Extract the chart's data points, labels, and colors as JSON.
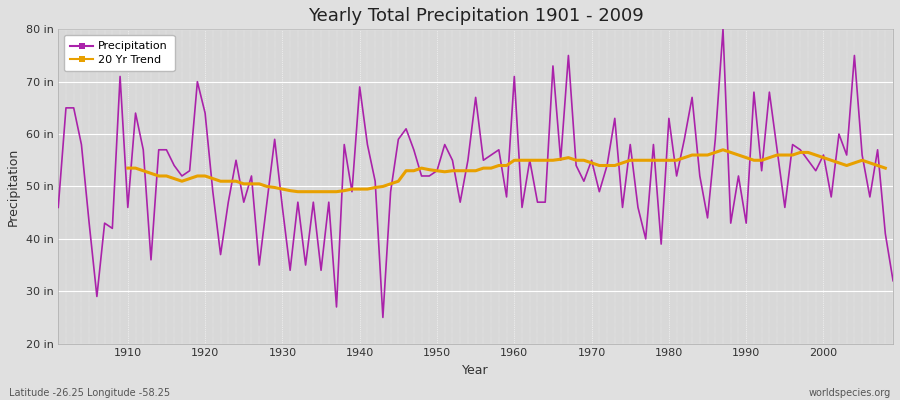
{
  "title": "Yearly Total Precipitation 1901 - 2009",
  "xlabel": "Year",
  "ylabel": "Precipitation",
  "footnote_left": "Latitude -26.25 Longitude -58.25",
  "footnote_right": "worldspecies.org",
  "ylim": [
    20,
    80
  ],
  "yticks": [
    20,
    30,
    40,
    50,
    60,
    70,
    80
  ],
  "ytick_labels": [
    "20 in",
    "30 in",
    "40 in",
    "50 in",
    "60 in",
    "70 in",
    "80 in"
  ],
  "xticks": [
    1910,
    1920,
    1930,
    1940,
    1950,
    1960,
    1970,
    1980,
    1990,
    2000
  ],
  "precip_color": "#AA22AA",
  "trend_color": "#E8A000",
  "fig_bg_color": "#E0E0E0",
  "plot_bg_color": "#D8D8D8",
  "legend_labels": [
    "Precipitation",
    "20 Yr Trend"
  ],
  "years": [
    1901,
    1902,
    1903,
    1904,
    1905,
    1906,
    1907,
    1908,
    1909,
    1910,
    1911,
    1912,
    1913,
    1914,
    1915,
    1916,
    1917,
    1918,
    1919,
    1920,
    1921,
    1922,
    1923,
    1924,
    1925,
    1926,
    1927,
    1928,
    1929,
    1930,
    1931,
    1932,
    1933,
    1934,
    1935,
    1936,
    1937,
    1938,
    1939,
    1940,
    1941,
    1942,
    1943,
    1944,
    1945,
    1946,
    1947,
    1948,
    1949,
    1950,
    1951,
    1952,
    1953,
    1954,
    1955,
    1956,
    1957,
    1958,
    1959,
    1960,
    1961,
    1962,
    1963,
    1964,
    1965,
    1966,
    1967,
    1968,
    1969,
    1970,
    1971,
    1972,
    1973,
    1974,
    1975,
    1976,
    1977,
    1978,
    1979,
    1980,
    1981,
    1982,
    1983,
    1984,
    1985,
    1986,
    1987,
    1988,
    1989,
    1990,
    1991,
    1992,
    1993,
    1994,
    1995,
    1996,
    1997,
    1998,
    1999,
    2000,
    2001,
    2002,
    2003,
    2004,
    2005,
    2006,
    2007,
    2008,
    2009
  ],
  "precip": [
    46,
    65,
    65,
    58,
    43,
    29,
    43,
    42,
    71,
    46,
    64,
    57,
    36,
    57,
    57,
    54,
    52,
    53,
    70,
    64,
    49,
    37,
    47,
    55,
    47,
    52,
    35,
    47,
    59,
    46,
    34,
    47,
    35,
    47,
    34,
    47,
    27,
    58,
    49,
    69,
    58,
    51,
    25,
    49,
    59,
    61,
    57,
    52,
    52,
    53,
    58,
    55,
    47,
    55,
    67,
    55,
    56,
    57,
    48,
    71,
    46,
    55,
    47,
    47,
    73,
    55,
    75,
    54,
    51,
    55,
    49,
    54,
    63,
    46,
    58,
    46,
    40,
    58,
    39,
    63,
    52,
    59,
    67,
    52,
    44,
    59,
    80,
    43,
    52,
    43,
    68,
    53,
    68,
    57,
    46,
    58,
    57,
    55,
    53,
    56,
    48,
    60,
    56,
    75,
    56,
    48,
    57,
    41,
    32
  ],
  "trend": [
    null,
    null,
    null,
    null,
    null,
    null,
    null,
    null,
    null,
    53.5,
    53.5,
    53.0,
    52.5,
    52.0,
    52.0,
    51.5,
    51.0,
    51.5,
    52.0,
    52.0,
    51.5,
    51.0,
    51.0,
    51.0,
    50.5,
    50.5,
    50.5,
    50.0,
    49.8,
    49.5,
    49.2,
    49.0,
    49.0,
    49.0,
    49.0,
    49.0,
    49.0,
    49.2,
    49.5,
    49.5,
    49.5,
    49.8,
    50.0,
    50.5,
    51.0,
    53.0,
    53.0,
    53.5,
    53.2,
    53.0,
    52.8,
    53.0,
    53.0,
    53.0,
    53.0,
    53.5,
    53.5,
    54.0,
    54.0,
    55.0,
    55.0,
    55.0,
    55.0,
    55.0,
    55.0,
    55.2,
    55.5,
    55.0,
    55.0,
    54.5,
    54.0,
    54.0,
    54.0,
    54.5,
    55.0,
    55.0,
    55.0,
    55.0,
    55.0,
    55.0,
    55.0,
    55.5,
    56.0,
    56.0,
    56.0,
    56.5,
    57.0,
    56.5,
    56.0,
    55.5,
    55.0,
    55.0,
    55.5,
    56.0,
    56.0,
    56.0,
    56.5,
    56.5,
    56.0,
    55.5,
    55.0,
    54.5,
    54.0,
    54.5,
    55.0,
    54.5,
    54.0,
    53.5,
    null
  ]
}
